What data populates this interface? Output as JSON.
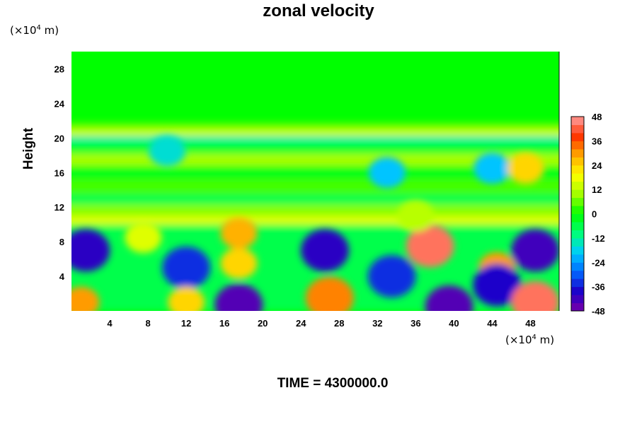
{
  "chart_data": {
    "type": "heatmap",
    "title": "zonal velocity",
    "ylabel": "Height",
    "x_unit": "(×10⁴ m)",
    "y_unit": "(×10⁴ m)",
    "x_unit_prefix": "(×10",
    "x_unit_exp": "4",
    "x_unit_suffix": " m)",
    "y_unit_prefix": "(×10",
    "y_unit_exp": "4",
    "y_unit_suffix": " m)",
    "xlim": [
      0,
      51
    ],
    "ylim": [
      0,
      30
    ],
    "xticks": [
      4,
      8,
      12,
      16,
      20,
      24,
      28,
      32,
      36,
      40,
      44,
      48
    ],
    "yticks": [
      4,
      8,
      12,
      16,
      20,
      24,
      28
    ],
    "colorbar": {
      "min": -48,
      "max": 48,
      "step": 4,
      "ticks": [
        48,
        36,
        24,
        12,
        0,
        -12,
        -24,
        -36,
        -48
      ]
    },
    "colorscale": [
      "#7a00a8",
      "#1c00c8",
      "#0066ff",
      "#00ccff",
      "#00ff7a",
      "#00ff00",
      "#a0ff00",
      "#ffff00",
      "#ffaa00",
      "#ff3300",
      "#ffa0a0"
    ],
    "field_features": [
      {
        "x": 1.5,
        "y": 7.0,
        "value": -40
      },
      {
        "x": 1.0,
        "y": 1.0,
        "value": 30
      },
      {
        "x": 7.5,
        "y": 8.5,
        "value": 16
      },
      {
        "x": 12.0,
        "y": 5.0,
        "value": -34
      },
      {
        "x": 12.0,
        "y": 1.0,
        "value": 24
      },
      {
        "x": 17.5,
        "y": 5.5,
        "value": 24
      },
      {
        "x": 17.5,
        "y": 9.0,
        "value": 28
      },
      {
        "x": 17.5,
        "y": 0.7,
        "value": -44
      },
      {
        "x": 26.5,
        "y": 7.0,
        "value": -40
      },
      {
        "x": 27.0,
        "y": 1.5,
        "value": 32
      },
      {
        "x": 33.5,
        "y": 4.0,
        "value": -34
      },
      {
        "x": 37.5,
        "y": 7.5,
        "value": 44
      },
      {
        "x": 39.5,
        "y": 0.5,
        "value": -44
      },
      {
        "x": 44.5,
        "y": 5.0,
        "value": 30
      },
      {
        "x": 44.5,
        "y": 3.0,
        "value": -38
      },
      {
        "x": 48.5,
        "y": 7.0,
        "value": -42
      },
      {
        "x": 48.5,
        "y": 1.0,
        "value": 44
      },
      {
        "x": 10.0,
        "y": 18.5,
        "value": -16
      },
      {
        "x": 33.0,
        "y": 16.0,
        "value": -20
      },
      {
        "x": 44.0,
        "y": 16.5,
        "value": -20
      },
      {
        "x": 47.5,
        "y": 16.5,
        "value": 24
      },
      {
        "x": 36.0,
        "y": 11.0,
        "value": 12
      }
    ]
  },
  "footer": {
    "label": "TIME = 4300000.0"
  }
}
